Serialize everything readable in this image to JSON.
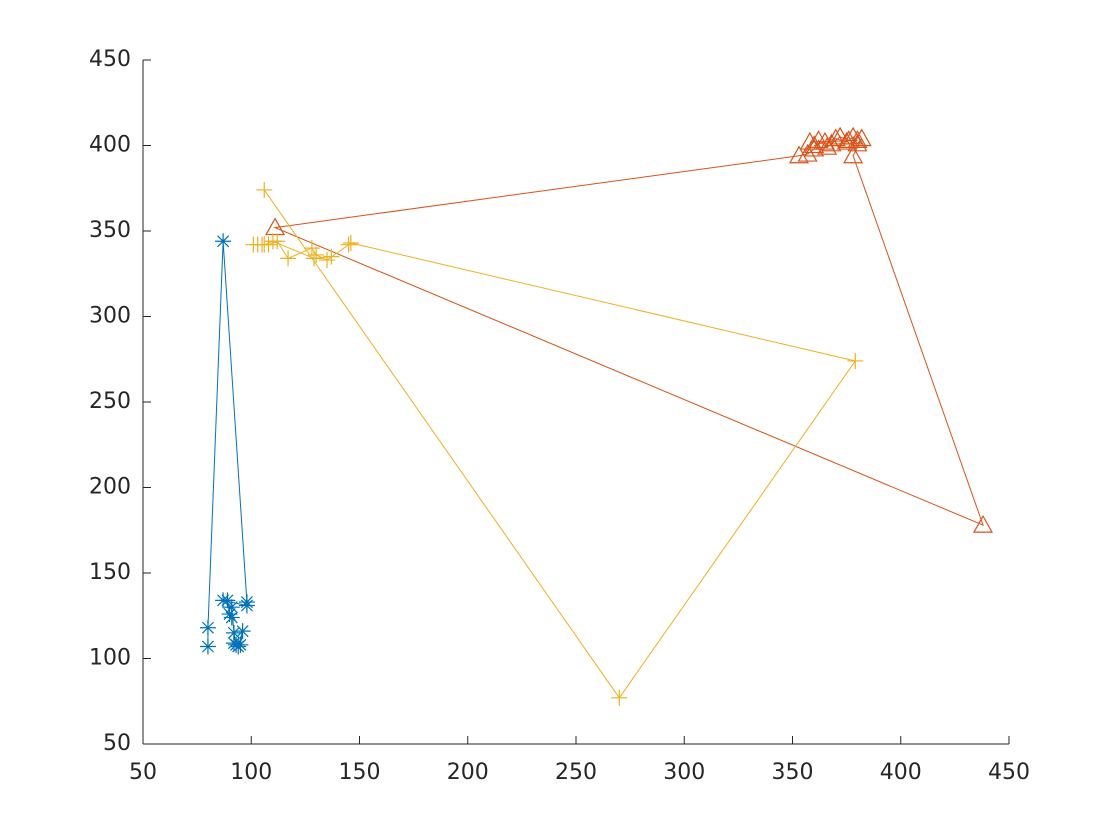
{
  "chart_data": {
    "type": "line",
    "xlim": [
      50,
      450
    ],
    "ylim": [
      50,
      450
    ],
    "xticks": [
      50,
      100,
      150,
      200,
      250,
      300,
      350,
      400,
      450
    ],
    "yticks": [
      50,
      100,
      150,
      200,
      250,
      300,
      350,
      400,
      450
    ],
    "grid": false,
    "series": [
      {
        "color": "#0072BD",
        "marker": "*",
        "x": [
          80,
          80,
          87,
          98,
          98,
          87,
          89,
          90,
          91,
          91,
          92,
          93,
          95,
          96,
          94,
          92
        ],
        "values": [
          107,
          118,
          344,
          133,
          131,
          134,
          134,
          126,
          124,
          130,
          115,
          108,
          108,
          116,
          107,
          109
        ]
      },
      {
        "color": "#D95319",
        "marker": "^",
        "x": [
          360,
          365,
          370,
          375,
          378,
          380,
          382,
          378,
          438,
          111,
          353,
          357,
          360,
          362,
          366,
          368,
          372,
          376,
          380,
          358
        ],
        "values": [
          400,
          402,
          404,
          402,
          405,
          401,
          404,
          394,
          178,
          352,
          394,
          395,
          398,
          403,
          399,
          401,
          405,
          403,
          403,
          402
        ]
      },
      {
        "color": "#EDB120",
        "marker": "+",
        "x": [
          106,
          270,
          379,
          146,
          145,
          135,
          130,
          128,
          117,
          112,
          108,
          105,
          103,
          101,
          106,
          110,
          129,
          137
        ],
        "values": [
          374,
          77,
          274,
          343,
          342,
          333,
          336,
          340,
          334,
          344,
          342,
          342,
          342,
          342,
          342,
          344,
          334,
          335
        ]
      }
    ]
  }
}
